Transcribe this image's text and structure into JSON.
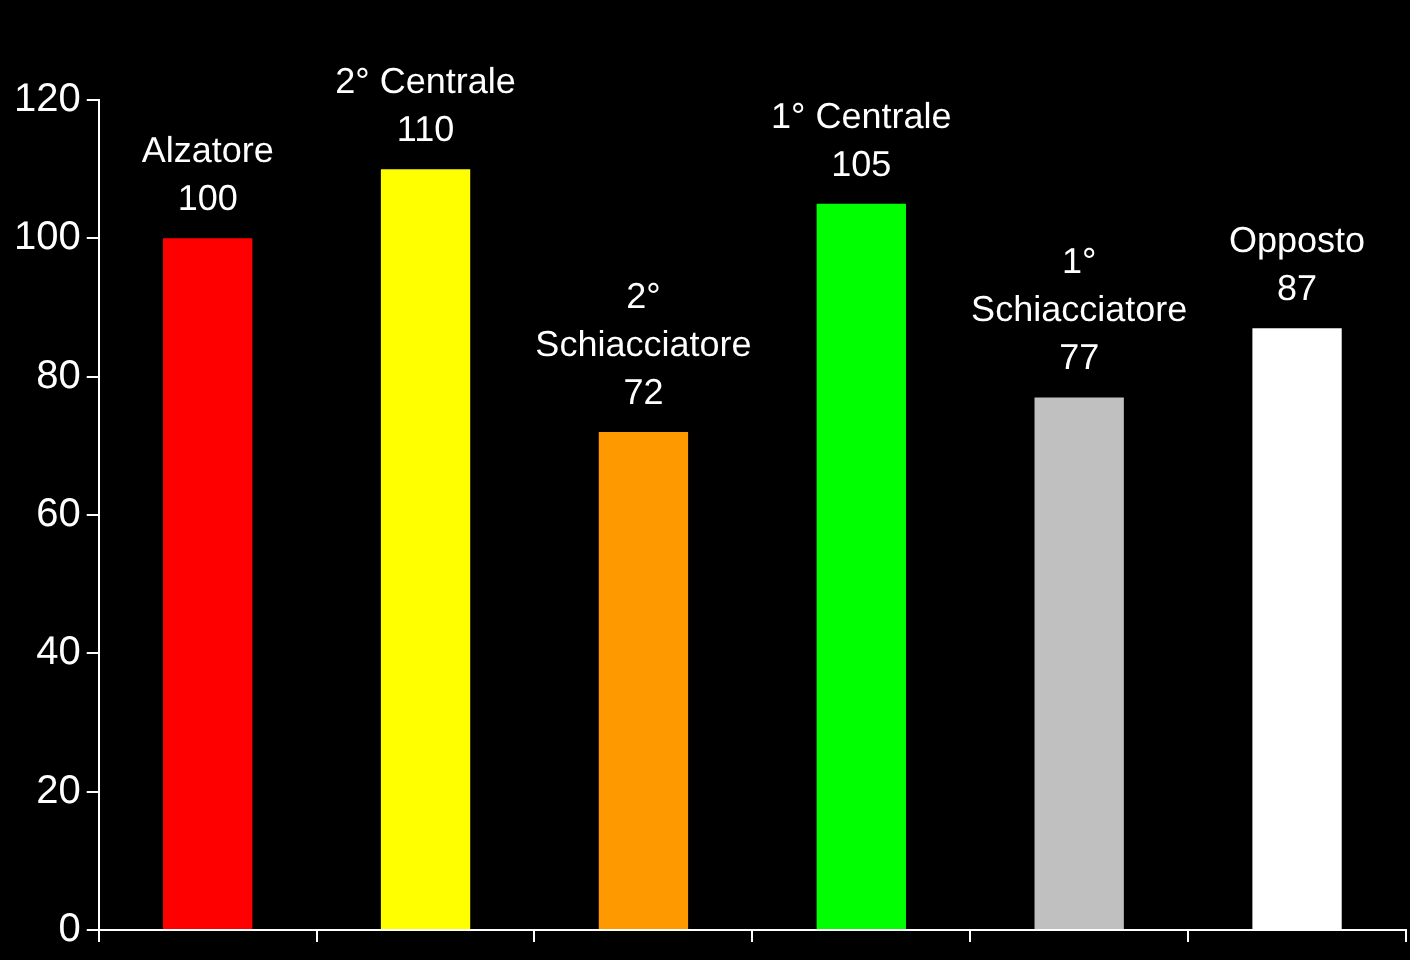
{
  "chart_data": {
    "type": "bar",
    "categories": [
      "Alzatore",
      "2° Centrale",
      "2° Schiacciatore",
      "1° Centrale",
      "1° Schiacciatore",
      "Opposto"
    ],
    "values": [
      100,
      110,
      72,
      105,
      77,
      87
    ],
    "colors": [
      "#ff0000",
      "#ffff00",
      "#ff9900",
      "#00ff00",
      "#c0c0c0",
      "#ffffff"
    ],
    "ylim": [
      0,
      120
    ],
    "yticks": [
      0,
      20,
      40,
      60,
      80,
      100,
      120
    ],
    "grid": false,
    "legend": false,
    "data_labels": true,
    "tick_labels": "y"
  }
}
